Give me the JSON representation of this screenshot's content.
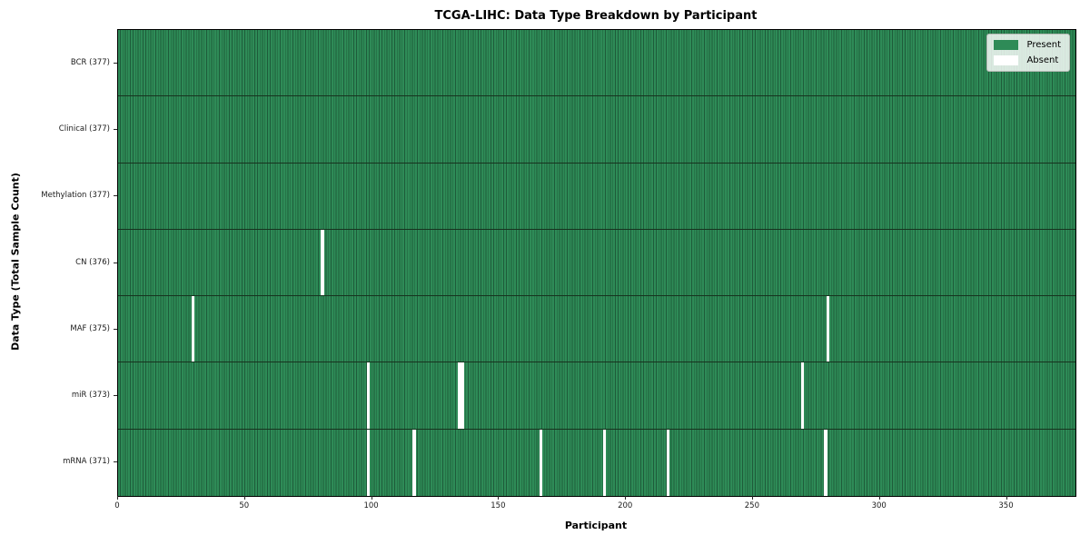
{
  "chart_data": {
    "type": "heatmap",
    "title": "TCGA-LIHC: Data Type Breakdown by Participant",
    "xlabel": "Participant",
    "ylabel": "Data Type (Total Sample Count)",
    "x_ticks": [
      0,
      50,
      100,
      150,
      200,
      250,
      300,
      350
    ],
    "x_range": [
      0,
      377
    ],
    "n_participants": 377,
    "grid": false,
    "legend_position": "upper right",
    "colors": {
      "present": "#2e8b57",
      "present_stripe": "#1e5c3a",
      "absent": "#ffffff",
      "row_separator": "#17331f",
      "plot_border": "#000000",
      "background": "#ffffff"
    },
    "legend": [
      {
        "label": "Present",
        "color": "#2e8b57"
      },
      {
        "label": "Absent",
        "color": "#ffffff"
      }
    ],
    "rows": [
      {
        "label": "BCR (377)",
        "total": 377,
        "absent": []
      },
      {
        "label": "Clinical (377)",
        "total": 377,
        "absent": []
      },
      {
        "label": "Methylation (377)",
        "total": 377,
        "absent": []
      },
      {
        "label": "CN (376)",
        "total": 376,
        "absent": [
          80
        ]
      },
      {
        "label": "MAF (375)",
        "total": 375,
        "absent": [
          29,
          279
        ]
      },
      {
        "label": "miR (373)",
        "total": 373,
        "absent": [
          98,
          134,
          135,
          269
        ]
      },
      {
        "label": "mRNA (371)",
        "total": 371,
        "absent": [
          98,
          116,
          166,
          191,
          216,
          278
        ]
      }
    ]
  }
}
